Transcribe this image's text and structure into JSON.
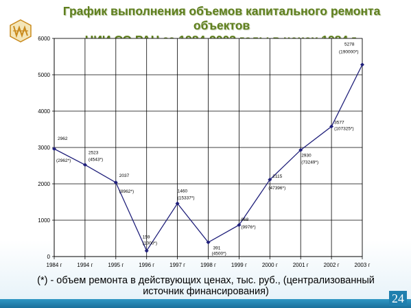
{
  "title_line1": "График выполнения объемов капитального ремонта объектов",
  "title_line2": "НИИ СО РАН за 1984-2003 годы в ценах 1984 г.",
  "footnote_line1": "(*) - объем ремонта в действующих ценах, тыс. руб., (централизованный",
  "footnote_line2": "источник финансирования)",
  "page_number": "24",
  "colors": {
    "line": "#1f1f7a",
    "title": "#5f7f1e",
    "accent": "#1f7fae"
  },
  "chart_data": {
    "type": "line",
    "categories": [
      "1984 г",
      "1994 г",
      "1995 г",
      "1996 г",
      "1997 г",
      "1998 г",
      "1999 г",
      "2000 г",
      "2001 г",
      "2002 г",
      "2003 г"
    ],
    "values": [
      2962,
      2523,
      2037,
      159,
      1460,
      391,
      868,
      2115,
      2930,
      3577,
      5278
    ],
    "value_labels": [
      "2962",
      "2523",
      "2037",
      "159",
      "1460",
      "391",
      "868",
      "2115",
      "2930",
      "3577",
      "5278"
    ],
    "current_price_labels": [
      "(2962*)",
      "(4543*)",
      "(8962*)",
      "(1000*)",
      "(15337*)",
      "(4500*)",
      "(9976*)",
      "(47396*)",
      "(73249*)",
      "(107325*)",
      "(190000*)"
    ],
    "yticks": [
      0,
      1000,
      2000,
      3000,
      4000,
      5000,
      6000
    ],
    "ylim": [
      0,
      6000
    ],
    "grid": true,
    "marker": "diamond"
  }
}
